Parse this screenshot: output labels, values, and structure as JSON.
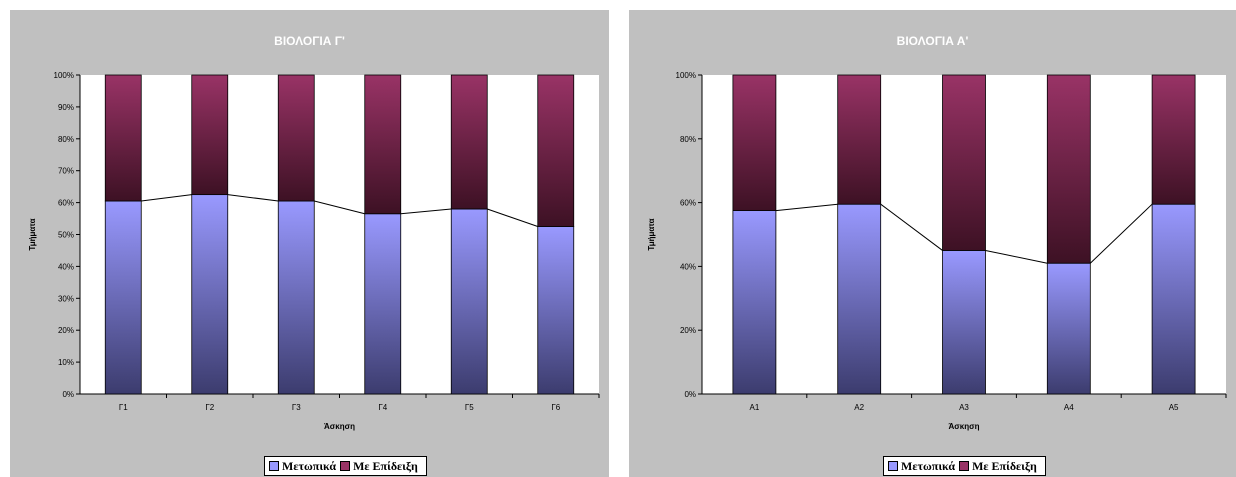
{
  "charts": [
    {
      "title": "ΒΙΟΛΟΓΙΑ Γ'",
      "xlabel": "Άσκηση",
      "ylabel": "Τμήματα",
      "legend": [
        "Μετωπικά",
        "Με Επίδειξη"
      ]
    },
    {
      "title": "ΒΙΟΛΟΓΙΑ Α'",
      "xlabel": "Άσκηση",
      "ylabel": "Τμήματα",
      "legend": [
        "Μετωπικά",
        "Με Επίδειξη"
      ]
    }
  ],
  "colors": {
    "series1": "#9999ff",
    "series1_dark": "#3c3c6e",
    "series2": "#993366",
    "series2_dark": "#3d1124",
    "panel_bg": "#c0c0c0"
  },
  "chart_data": [
    {
      "type": "bar",
      "stacked": "percent",
      "title": "ΒΙΟΛΟΓΙΑ Γ'",
      "xlabel": "Άσκηση",
      "ylabel": "Τμήματα",
      "categories": [
        "Γ1",
        "Γ2",
        "Γ3",
        "Γ4",
        "Γ5",
        "Γ6"
      ],
      "yticks": [
        "0%",
        "10%",
        "20%",
        "30%",
        "40%",
        "50%",
        "60%",
        "70%",
        "80%",
        "90%",
        "100%"
      ],
      "ylim": [
        0,
        100
      ],
      "series": [
        {
          "name": "Μετωπικά",
          "values": [
            60.5,
            62.5,
            60.5,
            56.5,
            58,
            52.5
          ]
        },
        {
          "name": "Με Επίδειξη",
          "values": [
            39.5,
            37.5,
            39.5,
            43.5,
            42,
            47.5
          ]
        }
      ],
      "legend_position": "bottom"
    },
    {
      "type": "bar",
      "stacked": "percent",
      "title": "ΒΙΟΛΟΓΙΑ Α'",
      "xlabel": "Άσκηση",
      "ylabel": "Τμήματα",
      "categories": [
        "Α1",
        "Α2",
        "Α3",
        "Α4",
        "Α5"
      ],
      "yticks": [
        "0%",
        "20%",
        "40%",
        "60%",
        "80%",
        "100%"
      ],
      "ylim": [
        0,
        100
      ],
      "series": [
        {
          "name": "Μετωπικά",
          "values": [
            57.5,
            59.5,
            45,
            41,
            59.5
          ]
        },
        {
          "name": "Με Επίδειξη",
          "values": [
            42.5,
            40.5,
            55,
            59,
            40.5
          ]
        }
      ],
      "legend_position": "bottom"
    }
  ]
}
